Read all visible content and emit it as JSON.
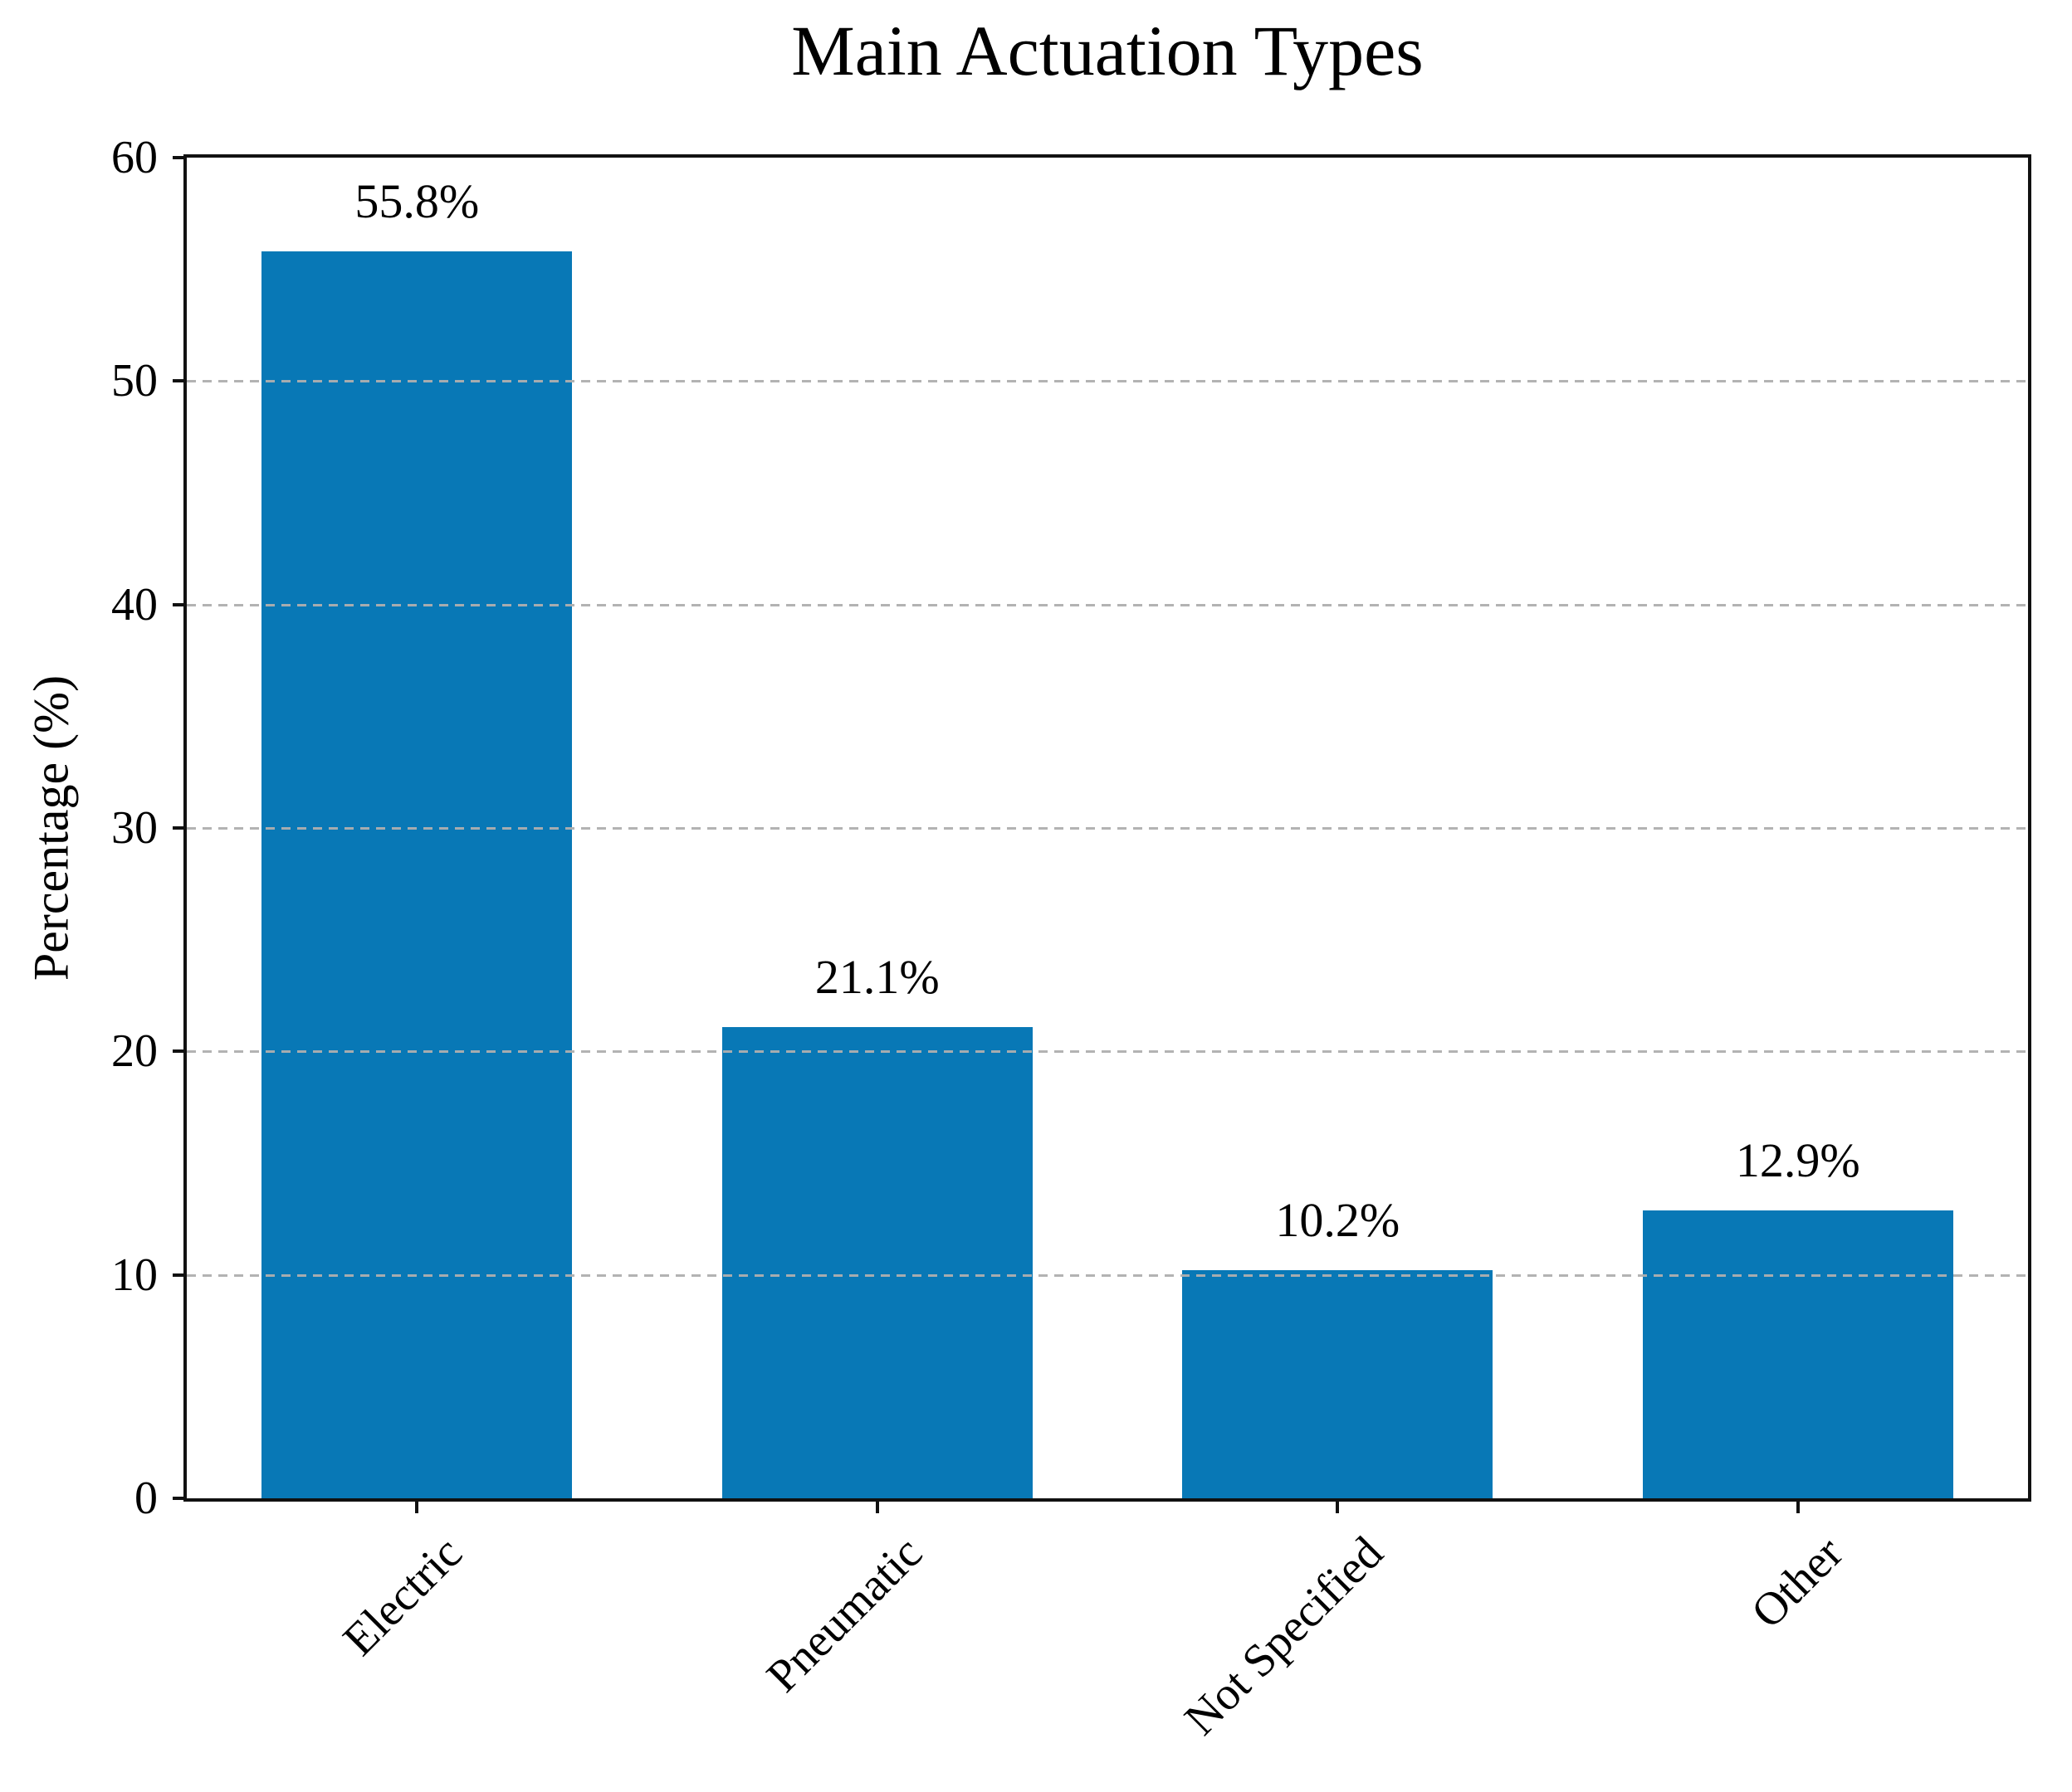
{
  "chart_data": {
    "type": "bar",
    "title": "Main Actuation Types",
    "xlabel": "",
    "ylabel": "Percentage (%)",
    "categories": [
      "Electric",
      "Pneumatic",
      "Not Specified",
      "Other"
    ],
    "values": [
      55.8,
      21.1,
      10.2,
      12.9
    ],
    "value_labels": [
      "55.8%",
      "21.1%",
      "10.2%",
      "12.9%"
    ],
    "ylim": [
      0,
      60
    ],
    "yticks": [
      0,
      10,
      20,
      30,
      40,
      50,
      60
    ],
    "ytick_labels": [
      "0",
      "10",
      "20",
      "30",
      "40",
      "50",
      "60"
    ],
    "grid_ticks": [
      10,
      20,
      30,
      40,
      50
    ],
    "grid_style": "dashed",
    "grid_above_bars": true,
    "legend_position": "none",
    "x_tick_rotation_deg": 45,
    "bar_color": "#0878b6",
    "grid_color": "#afafaf",
    "axis_color": "#111111",
    "text_color": "#000000"
  }
}
